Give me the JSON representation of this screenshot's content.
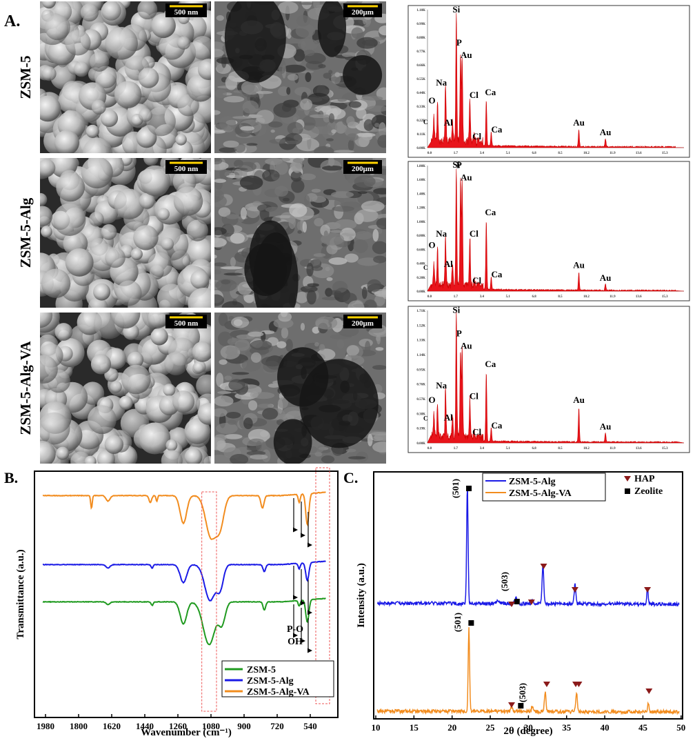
{
  "panel_a": {
    "label": "A.",
    "rows": [
      {
        "name": "ZSM-5",
        "scale_bars": [
          "500 nm",
          "200μm"
        ]
      },
      {
        "name": "ZSM-5-Alg",
        "scale_bars": [
          "500 nm",
          "200μm"
        ]
      },
      {
        "name": "ZSM-5-Alg-VA",
        "scale_bars": [
          "500 nm",
          "200μm"
        ]
      }
    ],
    "edx": [
      {
        "peaks": [
          "Si",
          "P",
          "Au",
          "Na",
          "O",
          "C",
          "Al",
          "Cl",
          "Cl",
          "Ca",
          "Ca",
          "Au",
          "Au"
        ],
        "yticks": [
          "0.00K",
          "0.11K",
          "0.22K",
          "0.33K",
          "0.44K",
          "0.55K",
          "0.66K",
          "0.77K",
          "0.88K",
          "0.99K",
          "1.10K"
        ],
        "xticks": [
          "0.0",
          "1.7",
          "3.4",
          "5.1",
          "6.8",
          "8.5",
          "10.2",
          "11.9",
          "13.6",
          "15.3"
        ]
      },
      {
        "peaks": [
          "Si",
          "P",
          "Au",
          "Na",
          "O",
          "C",
          "Al",
          "Cl",
          "Cl",
          "Ca",
          "Ca",
          "Au",
          "Au"
        ],
        "yticks": [
          "0.00K",
          "0.20K",
          "0.40K",
          "0.60K",
          "0.80K",
          "1.00K",
          "1.20K",
          "1.40K",
          "1.60K",
          "1.80K"
        ],
        "xticks": [
          "0.0",
          "1.7",
          "3.4",
          "5.1",
          "6.8",
          "8.5",
          "10.2",
          "11.9",
          "13.6",
          "15.3"
        ]
      },
      {
        "peaks": [
          "Si",
          "P",
          "Au",
          "Na",
          "O",
          "C",
          "Al",
          "Cl",
          "Cl",
          "Ca",
          "Ca",
          "Au",
          "Au"
        ],
        "yticks": [
          "0.00K",
          "0.19K",
          "0.38K",
          "0.57K",
          "0.76K",
          "0.95K",
          "1.14K",
          "1.33K",
          "1.52K",
          "1.71K"
        ],
        "xticks": [
          "0.0",
          "1.7",
          "3.4",
          "5.1",
          "6.8",
          "8.5",
          "10.2",
          "11.9",
          "13.6",
          "15.3"
        ]
      }
    ]
  },
  "panel_b": {
    "label": "B.",
    "ylabel": "Transmittance (a.u.)",
    "xlabel": "Wavenumber (cm⁻¹)",
    "xticks": [
      1980,
      1800,
      1620,
      1440,
      1260,
      1080,
      900,
      720,
      540
    ],
    "annotations": [
      "P-O",
      "OH"
    ],
    "legend": [
      {
        "name": "ZSM-5",
        "color": "#1f9a1f"
      },
      {
        "name": "ZSM-5-Alg",
        "color": "#1a1ae6"
      },
      {
        "name": "ZSM-5-Alg-VA",
        "color": "#f28c1e"
      }
    ]
  },
  "panel_c": {
    "label": "C.",
    "ylabel": "Intensity (a.u.)",
    "xlabel": "2θ (degree)",
    "xticks": [
      10,
      15,
      20,
      25,
      30,
      35,
      40,
      45,
      50
    ],
    "legend": [
      {
        "name": "ZSM-5-Alg",
        "color": "#1a1ae6"
      },
      {
        "name": "ZSM-5-Alg-VA",
        "color": "#f28c1e"
      }
    ],
    "markers": [
      {
        "name": "HAP",
        "color": "#8b1a1a"
      },
      {
        "name": "Zeolite",
        "color": "#000000"
      }
    ],
    "peak_labels": [
      "(501)",
      "(503)",
      "(501)",
      "(503)"
    ]
  }
}
